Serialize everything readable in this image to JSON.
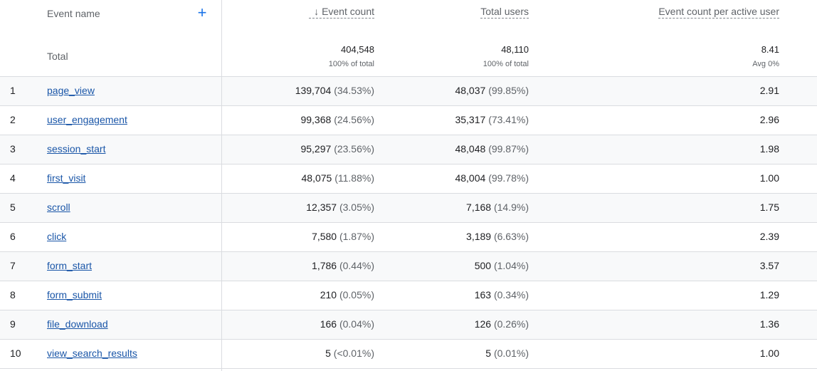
{
  "header": {
    "event_name": "Event name",
    "event_count": "Event count",
    "total_users": "Total users",
    "event_count_per_active_user": "Event count per active user",
    "add_icon": "plus-icon",
    "sort_icon": "arrow-down-icon"
  },
  "totals": {
    "label": "Total",
    "event_count": "404,548",
    "event_count_sub": "100% of total",
    "total_users": "48,110",
    "total_users_sub": "100% of total",
    "per_user": "8.41",
    "per_user_sub": "Avg 0%"
  },
  "rows": [
    {
      "index": "1",
      "name": "page_view",
      "count": "139,704",
      "count_pct": "(34.53%)",
      "users": "48,037",
      "users_pct": "(99.85%)",
      "per_user": "2.91"
    },
    {
      "index": "2",
      "name": "user_engagement",
      "count": "99,368",
      "count_pct": "(24.56%)",
      "users": "35,317",
      "users_pct": "(73.41%)",
      "per_user": "2.96"
    },
    {
      "index": "3",
      "name": "session_start",
      "count": "95,297",
      "count_pct": "(23.56%)",
      "users": "48,048",
      "users_pct": "(99.87%)",
      "per_user": "1.98"
    },
    {
      "index": "4",
      "name": "first_visit",
      "count": "48,075",
      "count_pct": "(11.88%)",
      "users": "48,004",
      "users_pct": "(99.78%)",
      "per_user": "1.00"
    },
    {
      "index": "5",
      "name": "scroll",
      "count": "12,357",
      "count_pct": "(3.05%)",
      "users": "7,168",
      "users_pct": "(14.9%)",
      "per_user": "1.75"
    },
    {
      "index": "6",
      "name": "click",
      "count": "7,580",
      "count_pct": "(1.87%)",
      "users": "3,189",
      "users_pct": "(6.63%)",
      "per_user": "2.39"
    },
    {
      "index": "7",
      "name": "form_start",
      "count": "1,786",
      "count_pct": "(0.44%)",
      "users": "500",
      "users_pct": "(1.04%)",
      "per_user": "3.57"
    },
    {
      "index": "8",
      "name": "form_submit",
      "count": "210",
      "count_pct": "(0.05%)",
      "users": "163",
      "users_pct": "(0.34%)",
      "per_user": "1.29"
    },
    {
      "index": "9",
      "name": "file_download",
      "count": "166",
      "count_pct": "(0.04%)",
      "users": "126",
      "users_pct": "(0.26%)",
      "per_user": "1.36"
    },
    {
      "index": "10",
      "name": "view_search_results",
      "count": "5",
      "count_pct": "(<0.01%)",
      "users": "5",
      "users_pct": "(0.01%)",
      "per_user": "1.00"
    }
  ],
  "colors": {
    "link": "#1a56a8",
    "accent": "#1a73e8",
    "stripe": "#f8f9fa",
    "divider": "#dadce0"
  }
}
